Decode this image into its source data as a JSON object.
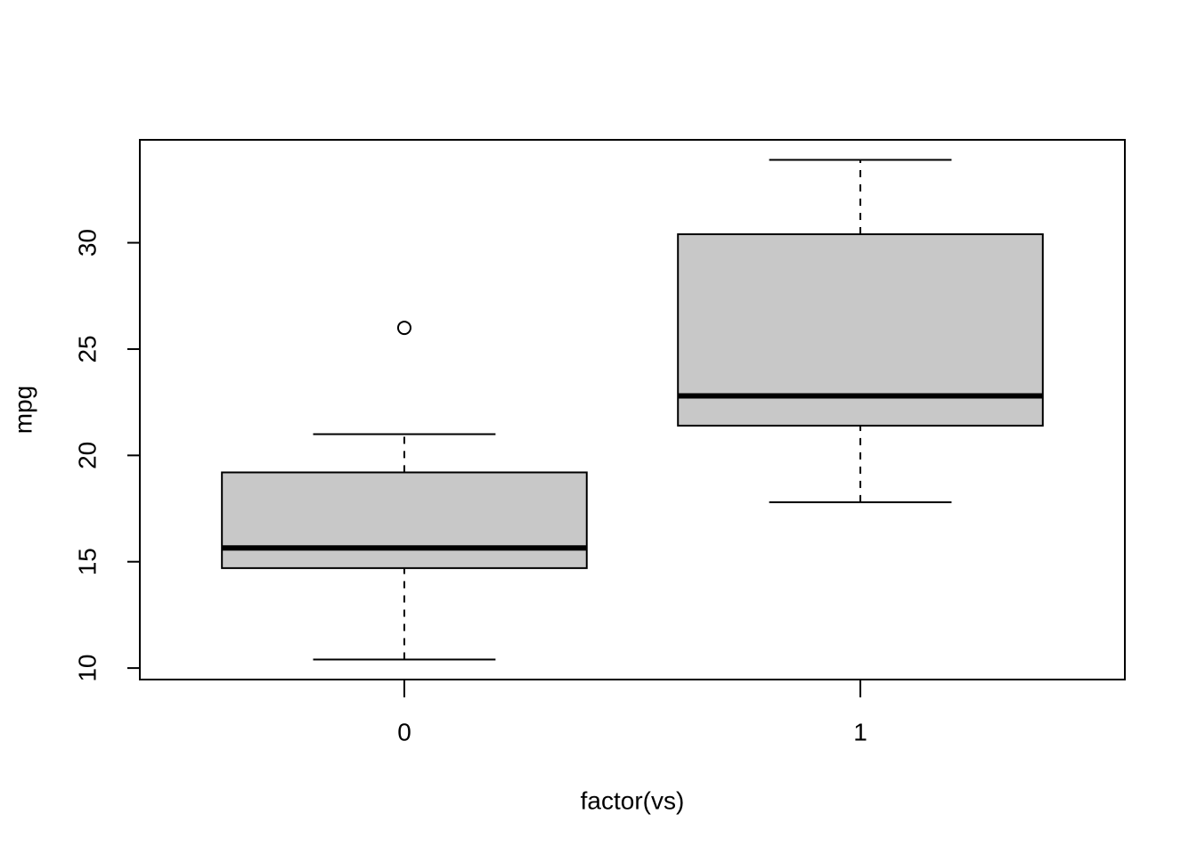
{
  "chart_data": {
    "type": "boxplot",
    "x_label": "factor(vs)",
    "y_label": "mpg",
    "categories": [
      "0",
      "1"
    ],
    "boxes": [
      {
        "min": 10.4,
        "q1": 14.7,
        "median": 15.65,
        "q3": 19.2,
        "max": 21,
        "outliers": [
          26
        ]
      },
      {
        "min": 17.8,
        "q1": 21.4,
        "median": 22.8,
        "q3": 30.4,
        "max": 33.9,
        "outliers": []
      }
    ],
    "color": "#c8c8c8",
    "ylim": [
      9.46,
      34.84
    ],
    "yticks": [
      10,
      15,
      20,
      25,
      30
    ]
  }
}
